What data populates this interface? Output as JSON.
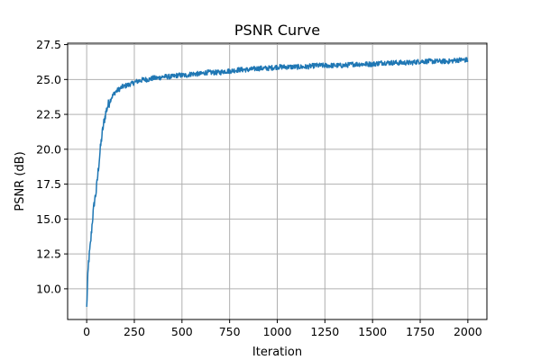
{
  "chart_data": {
    "type": "line",
    "title": "PSNR Curve",
    "xlabel": "Iteration",
    "ylabel": "PSNR (dB)",
    "xlim": [
      -100,
      2100
    ],
    "ylim": [
      7.8,
      27.6
    ],
    "xticks": [
      0,
      250,
      500,
      750,
      1000,
      1250,
      1500,
      1750,
      2000
    ],
    "yticks": [
      10.0,
      12.5,
      15.0,
      17.5,
      20.0,
      22.5,
      25.0,
      27.5
    ],
    "xtick_labels": [
      "0",
      "250",
      "500",
      "750",
      "1000",
      "1250",
      "1500",
      "1750",
      "2000"
    ],
    "ytick_labels": [
      "10.0",
      "12.5",
      "15.0",
      "17.5",
      "20.0",
      "22.5",
      "25.0",
      "27.5"
    ],
    "grid": true,
    "colors": {
      "line": "#1f77b4",
      "grid": "#b0b0b0",
      "axes": "#000000"
    },
    "series": [
      {
        "x": [
          0,
          5,
          10,
          20,
          30,
          40,
          50,
          60,
          70,
          80,
          90,
          100,
          110,
          120,
          130,
          140,
          150,
          160,
          170,
          180,
          190,
          200,
          210,
          220,
          230,
          240,
          250,
          275,
          300,
          325,
          350,
          375,
          400,
          425,
          450,
          475,
          500,
          525,
          550,
          575,
          600,
          625,
          650,
          675,
          700,
          725,
          750,
          800,
          850,
          900,
          950,
          1000,
          1050,
          1100,
          1150,
          1200,
          1250,
          1300,
          1350,
          1400,
          1450,
          1500,
          1550,
          1600,
          1650,
          1700,
          1750,
          1800,
          1850,
          1900,
          1950,
          2000
        ],
        "y": [
          8.6,
          10.5,
          11.9,
          13.2,
          14.9,
          16.2,
          17.0,
          18.4,
          19.8,
          21.0,
          21.9,
          22.6,
          23.1,
          23.4,
          23.7,
          23.9,
          24.1,
          24.2,
          24.3,
          24.4,
          24.5,
          24.5,
          24.6,
          24.6,
          24.7,
          24.7,
          24.8,
          24.9,
          25.0,
          25.0,
          25.1,
          25.1,
          25.2,
          25.2,
          25.2,
          25.3,
          25.3,
          25.3,
          25.4,
          25.4,
          25.4,
          25.5,
          25.5,
          25.5,
          25.5,
          25.6,
          25.6,
          25.7,
          25.7,
          25.8,
          25.8,
          25.9,
          25.9,
          25.9,
          25.9,
          26.0,
          26.0,
          26.0,
          26.0,
          26.1,
          26.1,
          26.1,
          26.2,
          26.2,
          26.2,
          26.2,
          26.3,
          26.3,
          26.3,
          26.3,
          26.4,
          26.4
        ]
      }
    ]
  }
}
